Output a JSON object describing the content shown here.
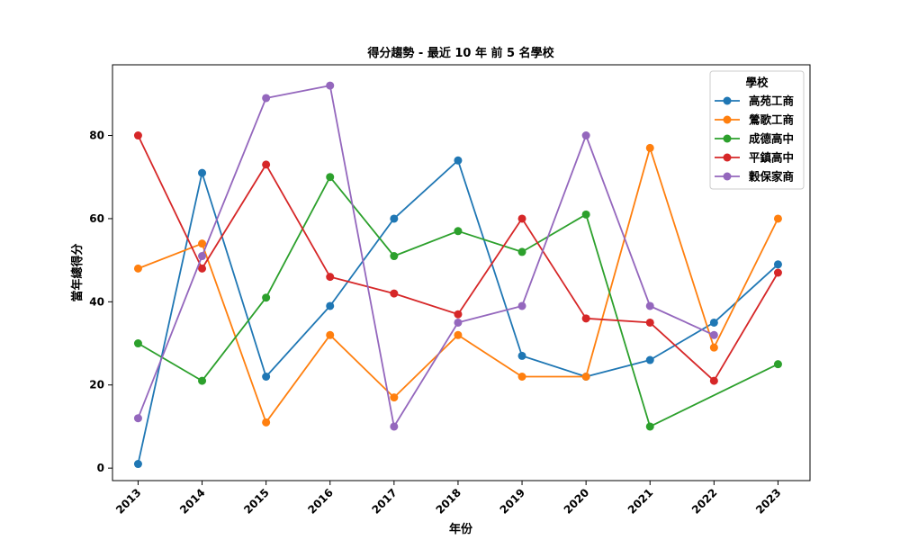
{
  "chart_data": {
    "type": "line",
    "title": "得分趨勢 - 最近 10 年 前 5 名學校",
    "xlabel": "年份",
    "ylabel": "當年總得分",
    "x": [
      2013,
      2014,
      2015,
      2016,
      2017,
      2018,
      2019,
      2020,
      2021,
      2022,
      2023
    ],
    "xlim": [
      2012.6,
      2023.5
    ],
    "ylim": [
      -3,
      97
    ],
    "yticks": [
      0,
      20,
      40,
      60,
      80
    ],
    "grid": false,
    "legend": {
      "title": "學校",
      "position": "top-right"
    },
    "series": [
      {
        "name": "高苑工商",
        "color": "#1f77b4",
        "values": [
          1,
          71,
          22,
          39,
          60,
          74,
          27,
          22,
          26,
          35,
          49
        ]
      },
      {
        "name": "鶯歌工商",
        "color": "#ff7f0e",
        "values": [
          48,
          54,
          11,
          32,
          17,
          32,
          22,
          22,
          77,
          29,
          60
        ]
      },
      {
        "name": "成德高中",
        "color": "#2ca02c",
        "values": [
          30,
          21,
          41,
          70,
          51,
          57,
          52,
          61,
          10,
          null,
          25
        ]
      },
      {
        "name": "平鎮高中",
        "color": "#d62728",
        "values": [
          80,
          48,
          73,
          46,
          42,
          37,
          60,
          36,
          35,
          21,
          47
        ]
      },
      {
        "name": "穀保家商",
        "color": "#9467bd",
        "values": [
          12,
          51,
          89,
          92,
          10,
          35,
          39,
          80,
          39,
          32,
          null
        ]
      }
    ]
  }
}
